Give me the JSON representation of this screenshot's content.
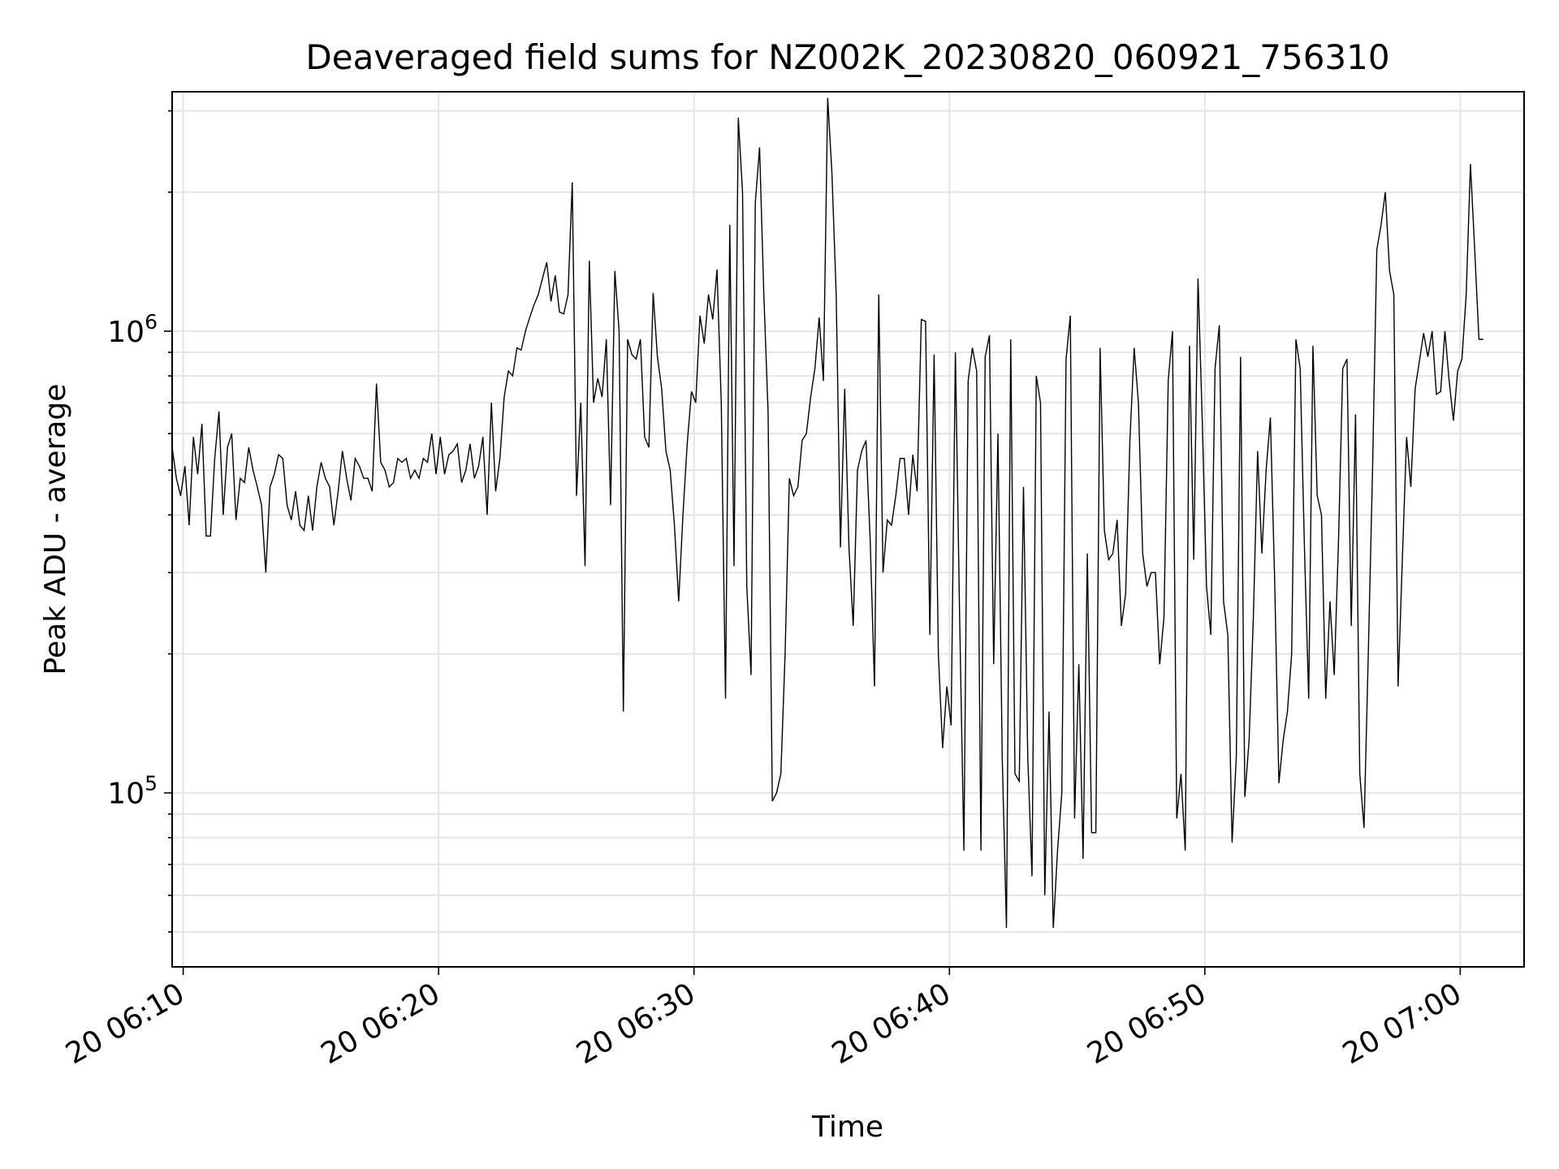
{
  "chart_data": {
    "type": "line",
    "title": "Deaveraged field sums for NZ002K_20230820_060921_756310",
    "xlabel": "Time",
    "ylabel": "Peak ADU - average",
    "xlim": [
      "2023-08-20T06:09:34",
      "2023-08-20T07:02:30"
    ],
    "ylim": [
      42000,
      3300000
    ],
    "yscale": "log",
    "grid": true,
    "line_color": "#000000",
    "x_ticks": [
      "20 06:10",
      "20 06:20",
      "20 06:30",
      "20 06:40",
      "20 06:50",
      "20 07:00"
    ],
    "x_tick_times": [
      "2023-08-20T06:10:00",
      "2023-08-20T06:20:00",
      "2023-08-20T06:30:00",
      "2023-08-20T06:40:00",
      "2023-08-20T06:50:00",
      "2023-08-20T07:00:00"
    ],
    "y_ticks": [
      {
        "value": 100000,
        "base": "10",
        "exp": "5"
      },
      {
        "value": 1000000,
        "base": "10",
        "exp": "6"
      }
    ],
    "series": [
      {
        "x_start": "2023-08-20T06:09:34",
        "x_step_seconds": 10,
        "values": [
          560000,
          480000,
          440000,
          510000,
          380000,
          590000,
          490000,
          630000,
          360000,
          360000,
          530000,
          670000,
          400000,
          560000,
          600000,
          390000,
          480000,
          470000,
          560000,
          500000,
          460000,
          420000,
          300000,
          460000,
          490000,
          540000,
          530000,
          420000,
          390000,
          450000,
          380000,
          370000,
          440000,
          370000,
          460000,
          520000,
          480000,
          460000,
          380000,
          450000,
          550000,
          480000,
          430000,
          530000,
          510000,
          480000,
          480000,
          450000,
          770000,
          520000,
          500000,
          460000,
          470000,
          530000,
          520000,
          530000,
          480000,
          500000,
          480000,
          530000,
          520000,
          600000,
          490000,
          590000,
          490000,
          540000,
          550000,
          570000,
          470000,
          500000,
          570000,
          480000,
          510000,
          590000,
          400000,
          700000,
          450000,
          530000,
          720000,
          820000,
          800000,
          920000,
          910000,
          1000000,
          1070000,
          1140000,
          1200000,
          1300000,
          1410000,
          1160000,
          1320000,
          1100000,
          1090000,
          1200000,
          2100000,
          440000,
          700000,
          310000,
          1420000,
          700000,
          790000,
          720000,
          960000,
          420000,
          1350000,
          1000000,
          150000,
          960000,
          890000,
          870000,
          960000,
          590000,
          560000,
          1210000,
          880000,
          750000,
          550000,
          500000,
          380000,
          260000,
          400000,
          570000,
          740000,
          700000,
          1080000,
          940000,
          1200000,
          1060000,
          1360000,
          700000,
          160000,
          1700000,
          310000,
          2900000,
          2000000,
          280000,
          180000,
          1900000,
          2500000,
          1200000,
          670000,
          96000,
          100000,
          110000,
          200000,
          480000,
          440000,
          460000,
          580000,
          600000,
          720000,
          830000,
          1070000,
          780000,
          3200000,
          2200000,
          1200000,
          340000,
          750000,
          340000,
          230000,
          500000,
          550000,
          580000,
          350000,
          170000,
          1200000,
          300000,
          390000,
          380000,
          440000,
          530000,
          530000,
          400000,
          540000,
          450000,
          1060000,
          1050000,
          220000,
          890000,
          200000,
          125000,
          170000,
          140000,
          900000,
          240000,
          75000,
          780000,
          920000,
          820000,
          75000,
          880000,
          980000,
          190000,
          600000,
          120000,
          51000,
          960000,
          110000,
          106000,
          460000,
          120000,
          66000,
          800000,
          700000,
          60000,
          150000,
          51000,
          75000,
          100000,
          870000,
          1080000,
          88000,
          190000,
          72000,
          330000,
          82000,
          82000,
          920000,
          370000,
          320000,
          330000,
          390000,
          230000,
          270000,
          580000,
          920000,
          700000,
          330000,
          280000,
          300000,
          300000,
          190000,
          240000,
          780000,
          1000000,
          88000,
          110000,
          75000,
          930000,
          320000,
          1300000,
          640000,
          280000,
          220000,
          830000,
          1030000,
          260000,
          220000,
          78000,
          120000,
          880000,
          98000,
          130000,
          240000,
          550000,
          330000,
          500000,
          650000,
          290000,
          105000,
          130000,
          150000,
          200000,
          960000,
          830000,
          340000,
          160000,
          930000,
          440000,
          400000,
          160000,
          260000,
          180000,
          350000,
          830000,
          870000,
          230000,
          660000,
          110000,
          84000,
          200000,
          500000,
          1500000,
          1700000,
          2000000,
          1350000,
          1200000,
          170000,
          320000,
          590000,
          460000,
          750000,
          860000,
          990000,
          880000,
          1000000,
          730000,
          740000,
          1000000,
          780000,
          640000,
          820000,
          870000,
          1200000,
          2300000,
          1500000,
          960000,
          960000
        ]
      }
    ]
  }
}
